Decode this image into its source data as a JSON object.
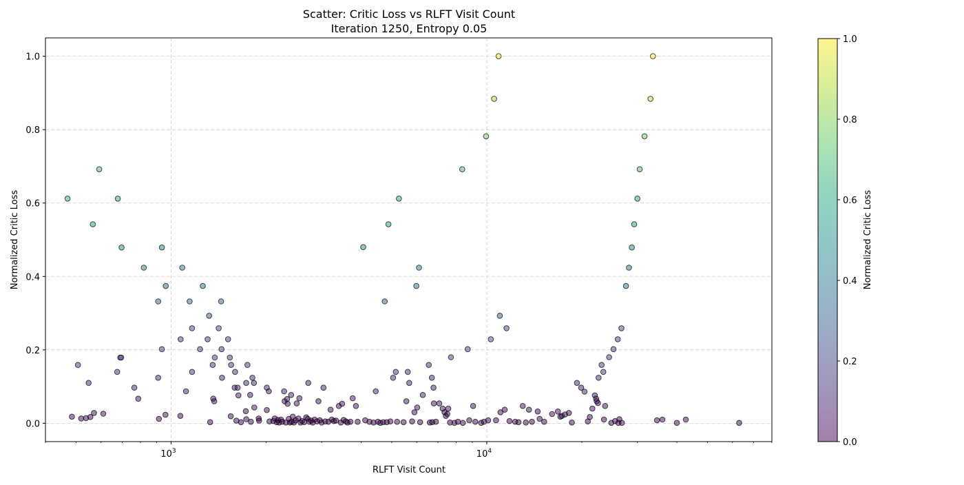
{
  "chart_data": {
    "type": "scatter",
    "title": "Scatter: Critic Loss vs RLFT Visit Count",
    "subtitle": "Iteration 1250, Entropy 0.05",
    "xlabel": "RLFT Visit Count",
    "ylabel": "Normalized Critic Loss",
    "x_scale": "log",
    "xlim": [
      400,
      80000
    ],
    "ylim": [
      -0.05,
      1.05
    ],
    "x_ticks": [
      {
        "base": "10",
        "exp": "3",
        "value": 1000
      },
      {
        "base": "10",
        "exp": "4",
        "value": 10000
      }
    ],
    "y_ticks": [
      "0.0",
      "0.2",
      "0.4",
      "0.6",
      "0.8",
      "1.0"
    ],
    "grid": true,
    "colormap": "viridis",
    "colorbar": {
      "label": "Normalized Critic Loss",
      "range": [
        0,
        1
      ],
      "ticks": [
        "0.0",
        "0.2",
        "0.4",
        "0.6",
        "0.8",
        "1.0"
      ]
    },
    "points": [
      [
        470,
        0.612
      ],
      [
        592,
        0.692
      ],
      [
        678,
        0.612
      ],
      [
        565,
        0.542
      ],
      [
        697,
        0.479
      ],
      [
        935,
        0.479
      ],
      [
        820,
        0.424
      ],
      [
        1085,
        0.424
      ],
      [
        962,
        0.374
      ],
      [
        1260,
        0.374
      ],
      [
        910,
        0.332
      ],
      [
        1145,
        0.332
      ],
      [
        1440,
        0.332
      ],
      [
        1320,
        0.293
      ],
      [
        1165,
        0.259
      ],
      [
        1415,
        0.259
      ],
      [
        1072,
        0.229
      ],
      [
        1305,
        0.229
      ],
      [
        1515,
        0.229
      ],
      [
        935,
        0.202
      ],
      [
        1235,
        0.202
      ],
      [
        1445,
        0.202
      ],
      [
        690,
        0.179
      ],
      [
        695,
        0.179
      ],
      [
        1375,
        0.179
      ],
      [
        1535,
        0.179
      ],
      [
        507,
        0.159
      ],
      [
        1355,
        0.159
      ],
      [
        1550,
        0.159
      ],
      [
        1745,
        0.159
      ],
      [
        675,
        0.14
      ],
      [
        1165,
        0.14
      ],
      [
        1595,
        0.14
      ],
      [
        910,
        0.124
      ],
      [
        1450,
        0.124
      ],
      [
        1810,
        0.124
      ],
      [
        548,
        0.11
      ],
      [
        1730,
        0.11
      ],
      [
        1830,
        0.11
      ],
      [
        765,
        0.097
      ],
      [
        1590,
        0.097
      ],
      [
        1625,
        0.097
      ],
      [
        2010,
        0.097
      ],
      [
        1115,
        0.087
      ],
      [
        2040,
        0.087
      ],
      [
        1780,
        0.077
      ],
      [
        1635,
        0.076
      ],
      [
        787,
        0.067
      ],
      [
        1360,
        0.067
      ],
      [
        1370,
        0.06
      ],
      [
        1835,
        0.043
      ],
      [
        2010,
        0.036
      ],
      [
        1725,
        0.033
      ],
      [
        485,
        0.018
      ],
      [
        519,
        0.013
      ],
      [
        538,
        0.014
      ],
      [
        555,
        0.017
      ],
      [
        570,
        0.028
      ],
      [
        610,
        0.026
      ],
      [
        915,
        0.012
      ],
      [
        960,
        0.023
      ],
      [
        1070,
        0.02
      ],
      [
        1330,
        0.003
      ],
      [
        1545,
        0.019
      ],
      [
        1610,
        0.007
      ],
      [
        1665,
        0.003
      ],
      [
        1730,
        0.011
      ],
      [
        1790,
        0.004
      ],
      [
        1895,
        0.013
      ],
      [
        1900,
        0.007
      ],
      [
        2050,
        0.005
      ],
      [
        2110,
        0.006
      ],
      [
        2130,
        0.013
      ],
      [
        2160,
        0.003
      ],
      [
        2180,
        0.009
      ],
      [
        2200,
        0.002
      ],
      [
        2230,
        0.01
      ],
      [
        2250,
        0.004
      ],
      [
        2280,
        0.087
      ],
      [
        2290,
        0.06
      ],
      [
        2310,
        0.002
      ],
      [
        2330,
        0.066
      ],
      [
        2340,
        0.053
      ],
      [
        2360,
        0.012
      ],
      [
        2380,
        0.002
      ],
      [
        2400,
        0.077
      ],
      [
        2410,
        0.004
      ],
      [
        2430,
        0.018
      ],
      [
        2450,
        0.002
      ],
      [
        2480,
        0.008
      ],
      [
        2500,
        0.054
      ],
      [
        2530,
        0.013
      ],
      [
        2550,
        0.068
      ],
      [
        2570,
        0.002
      ],
      [
        2600,
        0.006
      ],
      [
        2640,
        0.003
      ],
      [
        2680,
        0.016
      ],
      [
        2710,
        0.012
      ],
      [
        2720,
        0.11
      ],
      [
        2740,
        0.004
      ],
      [
        2780,
        0.007
      ],
      [
        2810,
        0.002
      ],
      [
        2850,
        0.01
      ],
      [
        2900,
        0.005
      ],
      [
        2930,
        0.06
      ],
      [
        2960,
        0.008
      ],
      [
        3000,
        0.002
      ],
      [
        3040,
        0.097
      ],
      [
        3080,
        0.005
      ],
      [
        3150,
        0.004
      ],
      [
        3200,
        0.037
      ],
      [
        3230,
        0.01
      ],
      [
        3280,
        0.006
      ],
      [
        3330,
        0.007
      ],
      [
        3400,
        0.047
      ],
      [
        3450,
        0.002
      ],
      [
        3480,
        0.053
      ],
      [
        3520,
        0.009
      ],
      [
        3580,
        0.005
      ],
      [
        3620,
        0.002
      ],
      [
        3700,
        0.004
      ],
      [
        3760,
        0.068
      ],
      [
        3850,
        0.047
      ],
      [
        3900,
        0.004
      ],
      [
        4060,
        0.48
      ],
      [
        4120,
        0.008
      ],
      [
        4250,
        0.004
      ],
      [
        4380,
        0.002
      ],
      [
        4450,
        0.087
      ],
      [
        4520,
        0.004
      ],
      [
        4600,
        0.001
      ],
      [
        4700,
        0.003
      ],
      [
        4750,
        0.332
      ],
      [
        4820,
        0.003
      ],
      [
        4880,
        0.542
      ],
      [
        4950,
        0.005
      ],
      [
        5050,
        0.124
      ],
      [
        5150,
        0.14
      ],
      [
        5200,
        0.004
      ],
      [
        5270,
        0.612
      ],
      [
        5450,
        0.003
      ],
      [
        5560,
        0.06
      ],
      [
        5620,
        0.14
      ],
      [
        5680,
        0.11
      ],
      [
        5800,
        0.005
      ],
      [
        5900,
        0.03
      ],
      [
        5980,
        0.374
      ],
      [
        6020,
        0.043
      ],
      [
        6100,
        0.424
      ],
      [
        6150,
        0.003
      ],
      [
        6270,
        0.077
      ],
      [
        6550,
        0.159
      ],
      [
        6600,
        0.002
      ],
      [
        6700,
        0.124
      ],
      [
        6720,
        0.003
      ],
      [
        6780,
        0.097
      ],
      [
        6800,
        0.054
      ],
      [
        6900,
        0.004
      ],
      [
        7070,
        0.054
      ],
      [
        7250,
        0.04
      ],
      [
        7350,
        0.03
      ],
      [
        7420,
        0.02
      ],
      [
        7500,
        0.025
      ],
      [
        7550,
        0.04
      ],
      [
        7650,
        0.002
      ],
      [
        7700,
        0.18
      ],
      [
        7900,
        0.001
      ],
      [
        8100,
        0.004
      ],
      [
        8360,
        0.692
      ],
      [
        8400,
        0.001
      ],
      [
        8700,
        0.202
      ],
      [
        8800,
        0.008
      ],
      [
        9050,
        0.047
      ],
      [
        9200,
        0.004
      ],
      [
        9600,
        0.001
      ],
      [
        9800,
        0.004
      ],
      [
        9950,
        0.782
      ],
      [
        10100,
        0.008
      ],
      [
        10300,
        0.229
      ],
      [
        10550,
        0.884
      ],
      [
        10700,
        0.008
      ],
      [
        10900,
        1.0
      ],
      [
        11000,
        0.293
      ],
      [
        11050,
        0.03
      ],
      [
        11400,
        0.037
      ],
      [
        11550,
        0.259
      ],
      [
        11800,
        0.006
      ],
      [
        12300,
        0.004
      ],
      [
        12600,
        0.003
      ],
      [
        13000,
        0.047
      ],
      [
        13300,
        0.002
      ],
      [
        13600,
        0.037
      ],
      [
        13900,
        0.004
      ],
      [
        14500,
        0.032
      ],
      [
        14700,
        0.012
      ],
      [
        15200,
        0.004
      ],
      [
        16100,
        0.025
      ],
      [
        16800,
        0.032
      ],
      [
        17100,
        0.018
      ],
      [
        17300,
        0.02
      ],
      [
        17700,
        0.024
      ],
      [
        18200,
        0.028
      ],
      [
        18600,
        0.002
      ],
      [
        19300,
        0.11
      ],
      [
        19900,
        0.097
      ],
      [
        20400,
        0.086
      ],
      [
        20900,
        0.005
      ],
      [
        21200,
        0.017
      ],
      [
        21600,
        0.04
      ],
      [
        22000,
        0.076
      ],
      [
        22200,
        0.067
      ],
      [
        22300,
        0.06
      ],
      [
        22500,
        0.055
      ],
      [
        22600,
        0.124
      ],
      [
        23100,
        0.159
      ],
      [
        23400,
        0.14
      ],
      [
        23700,
        0.047
      ],
      [
        23500,
        0.01
      ],
      [
        24400,
        0.18
      ],
      [
        24800,
        0.001
      ],
      [
        25200,
        0.202
      ],
      [
        25500,
        0.006
      ],
      [
        26000,
        0.229
      ],
      [
        26100,
        0.001
      ],
      [
        26300,
        0.011
      ],
      [
        26700,
        0.259
      ],
      [
        26800,
        0.001
      ],
      [
        27600,
        0.374
      ],
      [
        28200,
        0.424
      ],
      [
        28800,
        0.479
      ],
      [
        29300,
        0.542
      ],
      [
        30000,
        0.612
      ],
      [
        30500,
        0.692
      ],
      [
        31600,
        0.782
      ],
      [
        33000,
        0.884
      ],
      [
        33600,
        1.0
      ],
      [
        34600,
        0.008
      ],
      [
        36000,
        0.01
      ],
      [
        40000,
        0.001
      ],
      [
        42700,
        0.01
      ],
      [
        63000,
        0.001
      ]
    ]
  }
}
